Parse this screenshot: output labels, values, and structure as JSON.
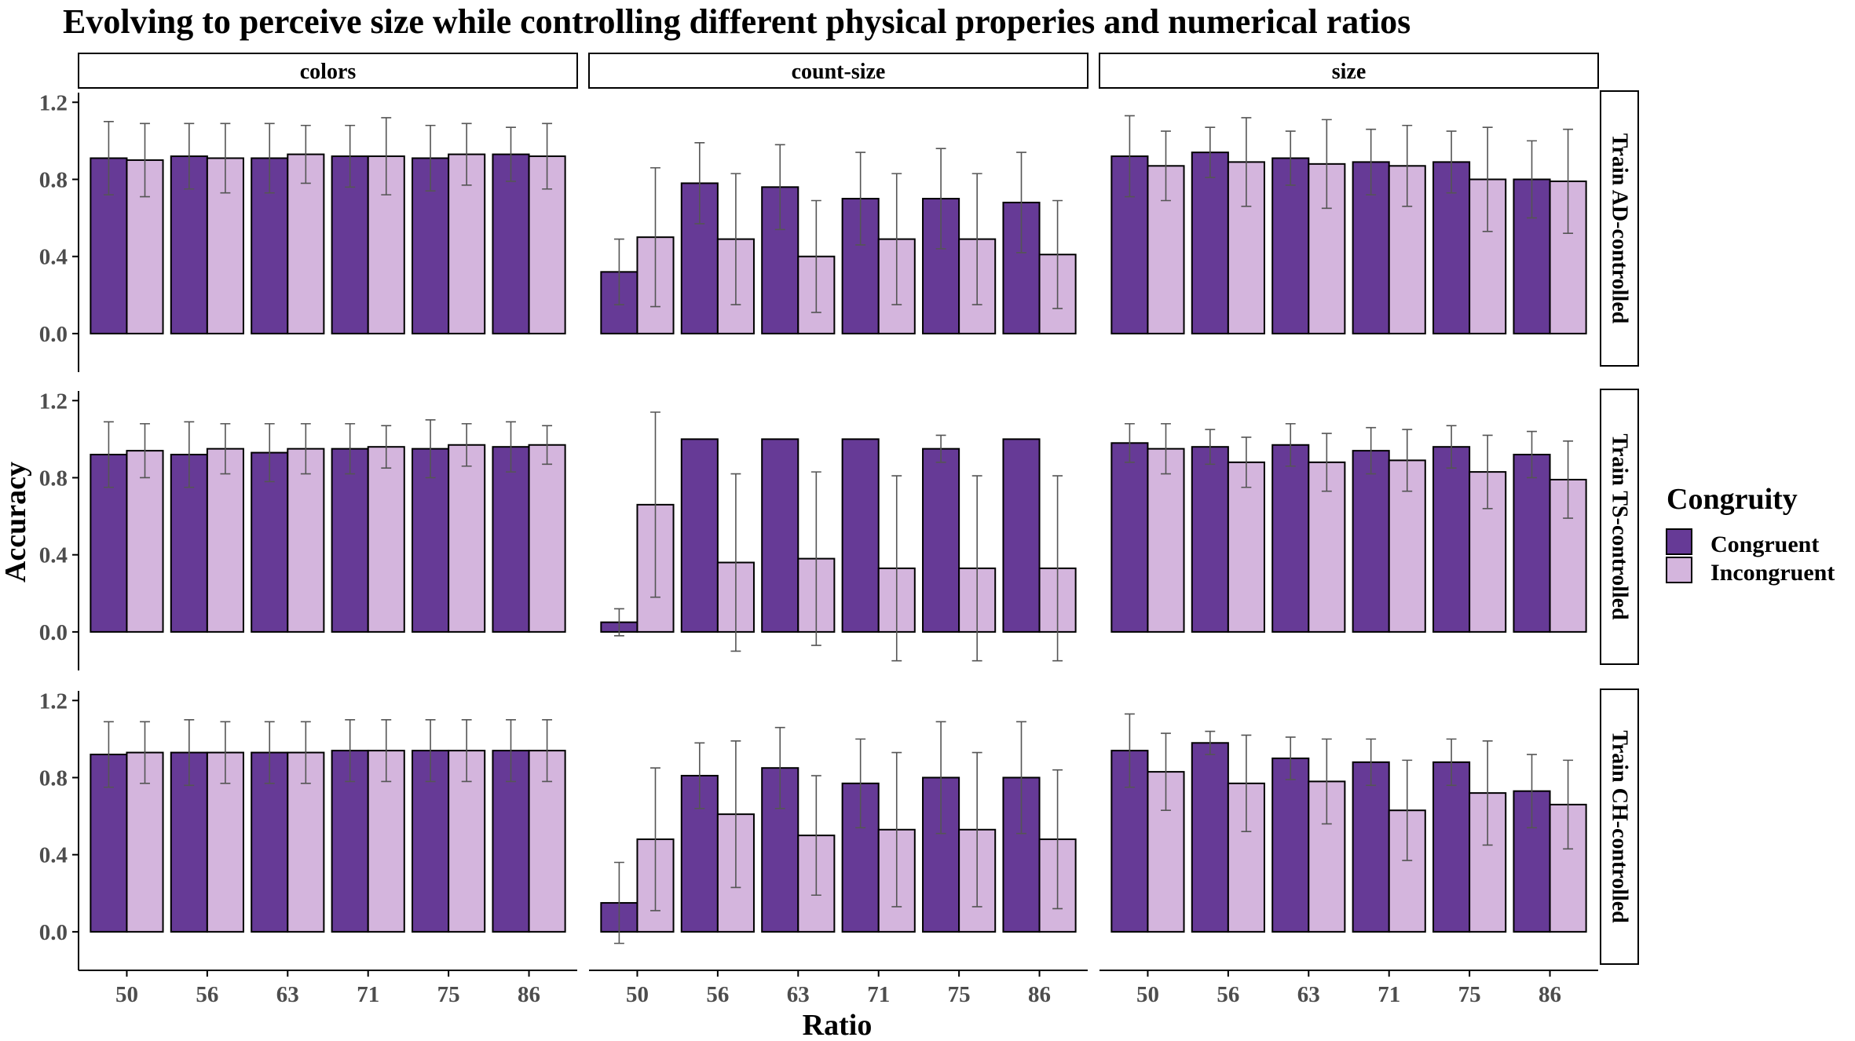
{
  "chart_data": {
    "type": "bar",
    "title": "Evolving to perceive size while controlling different physical properies and numerical ratios",
    "xlabel": "Ratio",
    "ylabel": "Accuracy",
    "ylim": [
      -0.2,
      1.25
    ],
    "yticks": [
      "0.0",
      "0.4",
      "0.8",
      "1.2"
    ],
    "grid": false,
    "categories": [
      "50",
      "56",
      "63",
      "71",
      "75",
      "86"
    ],
    "facet_columns": [
      "colors",
      "count-size",
      "size"
    ],
    "facet_rows": [
      "Train AD-controlled",
      "Train TS-controlled",
      "Train CH-controlled"
    ],
    "legend": {
      "title": "Congruity",
      "position": "right",
      "entries": [
        {
          "name": "Congruent",
          "color": "#663a96"
        },
        {
          "name": "Incongruent",
          "color": "#d4b5dd"
        }
      ]
    },
    "panels": [
      [
        {
          "congruent": [
            0.91,
            0.92,
            0.91,
            0.92,
            0.91,
            0.93
          ],
          "incongruent": [
            0.9,
            0.91,
            0.93,
            0.92,
            0.93,
            0.92
          ],
          "congruent_err": [
            0.19,
            0.17,
            0.18,
            0.16,
            0.17,
            0.14
          ],
          "incongruent_err": [
            0.19,
            0.18,
            0.15,
            0.2,
            0.16,
            0.17
          ]
        },
        {
          "congruent": [
            0.32,
            0.78,
            0.76,
            0.7,
            0.7,
            0.68
          ],
          "incongruent": [
            0.5,
            0.49,
            0.4,
            0.49,
            0.49,
            0.41
          ],
          "congruent_err": [
            0.17,
            0.21,
            0.22,
            0.24,
            0.26,
            0.26
          ],
          "incongruent_err": [
            0.36,
            0.34,
            0.29,
            0.34,
            0.34,
            0.28
          ]
        },
        {
          "congruent": [
            0.92,
            0.94,
            0.91,
            0.89,
            0.89,
            0.8
          ],
          "incongruent": [
            0.87,
            0.89,
            0.88,
            0.87,
            0.8,
            0.79
          ],
          "congruent_err": [
            0.21,
            0.13,
            0.14,
            0.17,
            0.16,
            0.2
          ],
          "incongruent_err": [
            0.18,
            0.23,
            0.23,
            0.21,
            0.27,
            0.27
          ]
        }
      ],
      [
        {
          "congruent": [
            0.92,
            0.92,
            0.93,
            0.95,
            0.95,
            0.96
          ],
          "incongruent": [
            0.94,
            0.95,
            0.95,
            0.96,
            0.97,
            0.97
          ],
          "congruent_err": [
            0.17,
            0.17,
            0.15,
            0.13,
            0.15,
            0.13
          ],
          "incongruent_err": [
            0.14,
            0.13,
            0.13,
            0.11,
            0.11,
            0.1
          ]
        },
        {
          "congruent": [
            0.05,
            1.0,
            1.0,
            1.0,
            0.95,
            1.0
          ],
          "incongruent": [
            0.66,
            0.36,
            0.38,
            0.33,
            0.33,
            0.33
          ],
          "congruent_err": [
            0.07,
            0,
            0,
            0,
            0.07,
            0
          ],
          "incongruent_err": [
            0.48,
            0.46,
            0.45,
            0.48,
            0.48,
            0.48
          ]
        },
        {
          "congruent": [
            0.98,
            0.96,
            0.97,
            0.94,
            0.96,
            0.92
          ],
          "incongruent": [
            0.95,
            0.88,
            0.88,
            0.89,
            0.83,
            0.79
          ],
          "congruent_err": [
            0.1,
            0.09,
            0.11,
            0.12,
            0.11,
            0.12
          ],
          "incongruent_err": [
            0.13,
            0.13,
            0.15,
            0.16,
            0.19,
            0.2
          ]
        }
      ],
      [
        {
          "congruent": [
            0.92,
            0.93,
            0.93,
            0.94,
            0.94,
            0.94
          ],
          "incongruent": [
            0.93,
            0.93,
            0.93,
            0.94,
            0.94,
            0.94
          ],
          "congruent_err": [
            0.17,
            0.17,
            0.16,
            0.16,
            0.16,
            0.16
          ],
          "incongruent_err": [
            0.16,
            0.16,
            0.16,
            0.16,
            0.16,
            0.16
          ]
        },
        {
          "congruent": [
            0.15,
            0.81,
            0.85,
            0.77,
            0.8,
            0.8
          ],
          "incongruent": [
            0.48,
            0.61,
            0.5,
            0.53,
            0.53,
            0.48
          ],
          "congruent_err": [
            0.21,
            0.17,
            0.21,
            0.23,
            0.29,
            0.29
          ],
          "incongruent_err": [
            0.37,
            0.38,
            0.31,
            0.4,
            0.4,
            0.36
          ]
        },
        {
          "congruent": [
            0.94,
            0.98,
            0.9,
            0.88,
            0.88,
            0.73
          ],
          "incongruent": [
            0.83,
            0.77,
            0.78,
            0.63,
            0.72,
            0.66
          ],
          "congruent_err": [
            0.19,
            0.06,
            0.11,
            0.12,
            0.12,
            0.19
          ],
          "incongruent_err": [
            0.2,
            0.25,
            0.22,
            0.26,
            0.27,
            0.23
          ]
        }
      ]
    ]
  }
}
